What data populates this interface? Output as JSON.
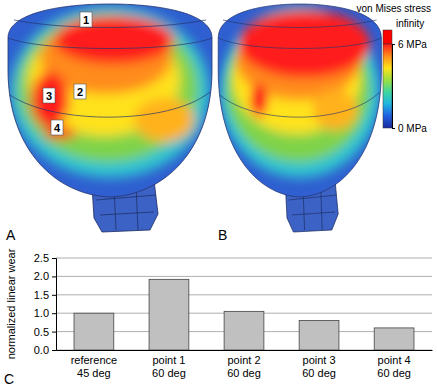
{
  "chart_data": {
    "type": "bar",
    "panel_label": "C",
    "ylabel": "normalized linear wear",
    "categories": [
      "reference\n45 deg",
      "point 1\n60 deg",
      "point 2\n60 deg",
      "point 3\n60 deg",
      "point 4\n60 deg"
    ],
    "values": [
      1.0,
      1.92,
      1.05,
      0.8,
      0.6
    ],
    "color": "#c0c0c0",
    "ylim": [
      0,
      2.5
    ],
    "yticks": [
      {
        "value": 0,
        "label": "0.0"
      },
      0.5,
      {
        "value": 1,
        "label": "1.0"
      },
      1.5,
      {
        "value": 2,
        "label": "2.0"
      },
      2.5
    ],
    "grid": true
  },
  "images": [
    {
      "panel_label": "A",
      "point_labels": [
        "1",
        "2",
        "3",
        "4"
      ]
    },
    {
      "panel_label": "B"
    }
  ],
  "colorbar": {
    "title": "von Mises stress",
    "range": [
      0,
      6
    ],
    "ticks": [
      {
        "value": 0,
        "label": "0 MPa"
      },
      {
        "value": 6,
        "label": "6 MPa"
      }
    ],
    "over_label": "infinity"
  }
}
